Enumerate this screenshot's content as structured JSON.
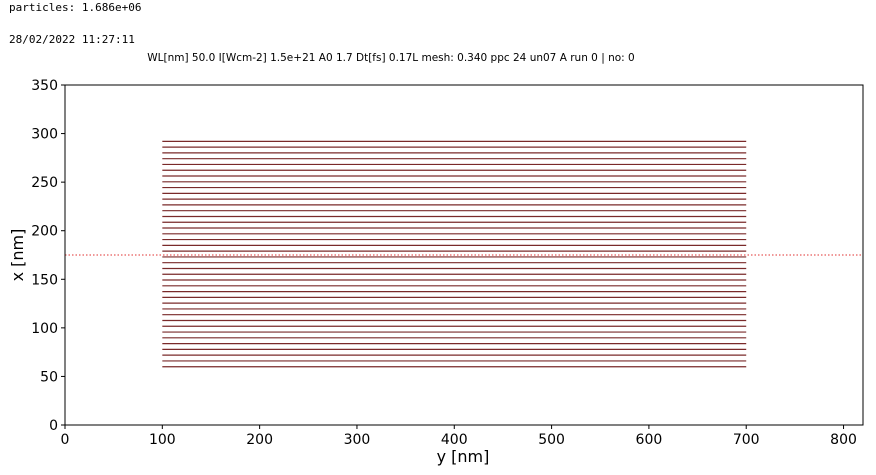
{
  "header": {
    "particles": "particles: 1.686e+06",
    "timestamp": "28/02/2022 11:27:11",
    "subtitle": "WL[nm] 50.0 I[Wcm-2] 1.5e+21 A0 1.7 Dt[fs] 0.17L mesh: 0.340 ppc 24 un07 A run 0 | no: 0"
  },
  "chart_data": {
    "type": "line",
    "title": "WL[nm] 50.0 I[Wcm-2] 1.5e+21 A0 1.7 Dt[fs] 0.17L mesh: 0.340 ppc 24 un07 A run 0 | no: 0",
    "xlabel": "y [nm]",
    "ylabel": "x [nm]",
    "xlim": [
      0,
      820
    ],
    "ylim": [
      0,
      350
    ],
    "xticks": [
      0,
      100,
      200,
      300,
      400,
      500,
      600,
      700,
      800
    ],
    "yticks": [
      0,
      50,
      100,
      150,
      200,
      250,
      300,
      350
    ],
    "grid": false,
    "layers": {
      "x_start": 100,
      "x_end": 700,
      "y_first": 60,
      "y_last": 292,
      "count": 40,
      "color": "#7a2a2a"
    },
    "reference_line": {
      "y": 175,
      "style": "dotted",
      "color": "#e03030"
    }
  }
}
